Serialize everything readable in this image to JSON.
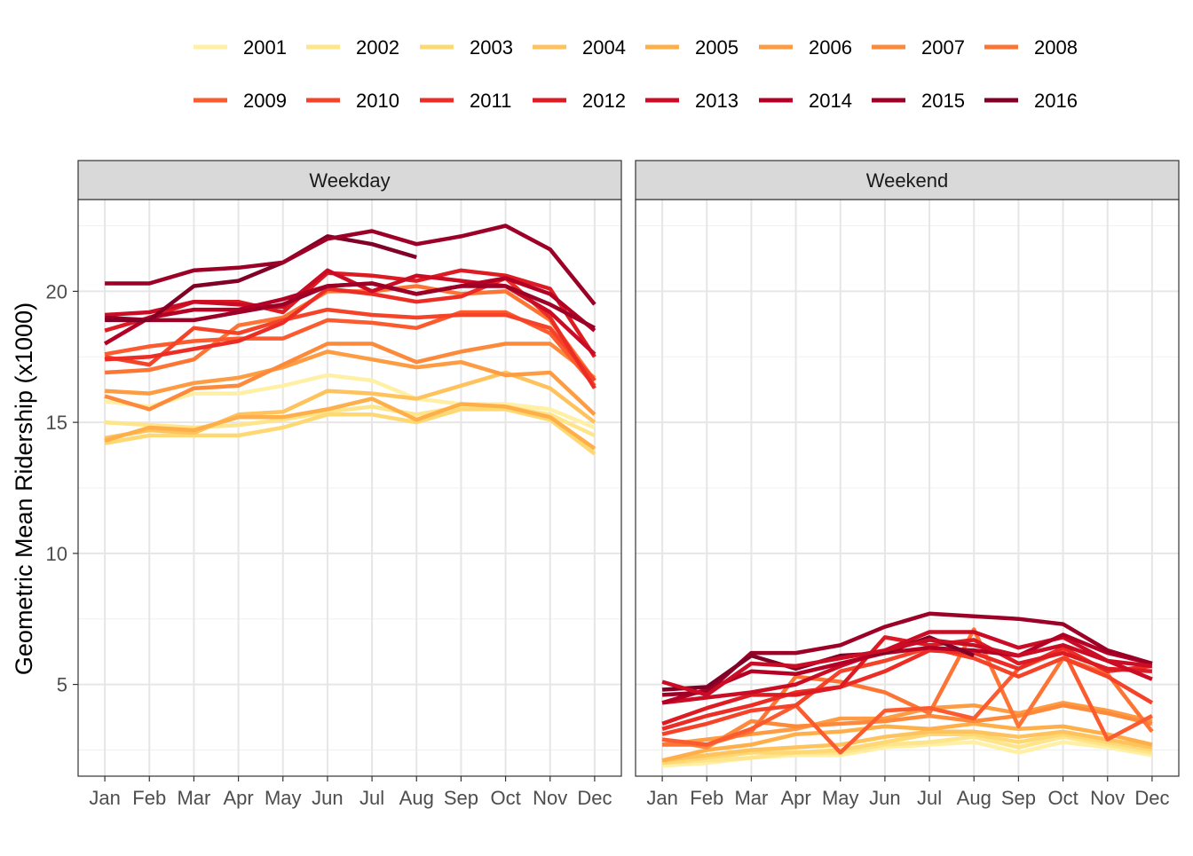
{
  "chart_data": {
    "type": "line",
    "ylabel": "Geometric Mean Ridership (x1000)",
    "xlabel": "",
    "categories": [
      "Jan",
      "Feb",
      "Mar",
      "Apr",
      "May",
      "Jun",
      "Jul",
      "Aug",
      "Sep",
      "Oct",
      "Nov",
      "Dec"
    ],
    "yticks": [
      5,
      10,
      15,
      20
    ],
    "legend_position": "top",
    "facet_labels": [
      "Weekday",
      "Weekend"
    ],
    "panels": [
      {
        "facet": "Weekday",
        "ylim": [
          1.5,
          23.5
        ],
        "series": [
          {
            "name": "2001",
            "color": "#FFF0A6",
            "values": [
              15.8,
              15.6,
              16.1,
              16.1,
              16.4,
              16.8,
              16.6,
              15.9,
              15.7,
              15.7,
              15.5,
              14.8
            ]
          },
          {
            "name": "2002",
            "color": "#FEE48A",
            "values": [
              15.0,
              14.9,
              14.8,
              14.9,
              15.1,
              15.4,
              15.6,
              15.3,
              15.6,
              15.6,
              15.3,
              14.5
            ]
          },
          {
            "name": "2003",
            "color": "#FED873",
            "values": [
              14.2,
              14.5,
              14.5,
              14.5,
              14.8,
              15.3,
              15.3,
              15.0,
              15.5,
              15.5,
              15.1,
              13.8
            ]
          },
          {
            "name": "2004",
            "color": "#FEC35D",
            "values": [
              14.4,
              14.7,
              14.6,
              15.3,
              15.4,
              16.2,
              16.1,
              15.9,
              16.4,
              16.9,
              16.3,
              15.0
            ]
          },
          {
            "name": "2005",
            "color": "#FEAF4A",
            "values": [
              14.3,
              14.8,
              14.7,
              15.2,
              15.2,
              15.5,
              15.9,
              15.1,
              15.7,
              15.6,
              15.2,
              14.0
            ]
          },
          {
            "name": "2006",
            "color": "#FD9C42",
            "values": [
              16.2,
              16.1,
              16.5,
              16.7,
              17.1,
              17.7,
              17.4,
              17.1,
              17.3,
              16.8,
              16.9,
              15.3
            ]
          },
          {
            "name": "2007",
            "color": "#FD893B",
            "values": [
              16.0,
              15.5,
              16.3,
              16.4,
              17.2,
              18.0,
              18.0,
              17.3,
              17.7,
              18.0,
              18.0,
              16.7
            ]
          },
          {
            "name": "2008",
            "color": "#FC7534",
            "values": [
              16.9,
              17.0,
              17.4,
              18.7,
              19.0,
              20.0,
              20.0,
              20.2,
              19.9,
              20.0,
              18.9,
              16.6
            ]
          },
          {
            "name": "2009",
            "color": "#FB5B2E",
            "values": [
              17.6,
              17.9,
              18.1,
              18.2,
              18.2,
              18.9,
              18.8,
              18.6,
              19.2,
              19.2,
              18.4,
              16.4
            ]
          },
          {
            "name": "2010",
            "color": "#F44329",
            "values": [
              17.5,
              17.2,
              18.6,
              18.4,
              18.9,
              19.3,
              19.1,
              19.0,
              19.1,
              19.1,
              18.6,
              16.6
            ]
          },
          {
            "name": "2011",
            "color": "#EB2D25",
            "values": [
              17.4,
              17.5,
              17.8,
              18.1,
              18.8,
              20.1,
              19.9,
              19.6,
              19.8,
              20.5,
              19.0,
              16.3
            ]
          },
          {
            "name": "2012",
            "color": "#DD1B23",
            "values": [
              18.5,
              19.0,
              19.6,
              19.6,
              19.2,
              20.7,
              20.6,
              20.4,
              20.8,
              20.6,
              20.1,
              17.5
            ]
          },
          {
            "name": "2013",
            "color": "#CB0C25",
            "values": [
              19.1,
              19.2,
              19.6,
              19.5,
              19.4,
              20.8,
              20.0,
              20.6,
              20.4,
              20.2,
              19.2,
              17.6
            ]
          },
          {
            "name": "2014",
            "color": "#B50026",
            "values": [
              18.0,
              19.0,
              19.3,
              19.3,
              19.7,
              20.2,
              20.3,
              19.9,
              20.2,
              20.5,
              19.9,
              18.5
            ]
          },
          {
            "name": "2015",
            "color": "#9D0026",
            "values": [
              19.0,
              18.9,
              18.9,
              19.2,
              19.5,
              20.2,
              20.3,
              19.9,
              20.2,
              20.2,
              19.5,
              18.6
            ]
          },
          {
            "name": "2016",
            "color": "#800026",
            "values": [
              18.9,
              18.9,
              20.2,
              20.4,
              21.1,
              22.1,
              21.8,
              21.3,
              null,
              null,
              null,
              null
            ]
          },
          {
            "name": "2015b",
            "color": "#9D0026",
            "legend": false,
            "values": [
              20.3,
              20.3,
              20.8,
              20.9,
              21.1,
              22.0,
              22.3,
              21.8,
              22.1,
              22.5,
              21.6,
              19.5
            ]
          }
        ]
      },
      {
        "facet": "Weekend",
        "ylim": [
          1.5,
          23.5
        ],
        "series": [
          {
            "name": "2001",
            "color": "#FFF0A6",
            "values": [
              1.9,
              2.0,
              2.2,
              2.3,
              2.3,
              2.6,
              2.7,
              2.8,
              2.4,
              2.8,
              2.6,
              2.3
            ]
          },
          {
            "name": "2002",
            "color": "#FEE48A",
            "values": [
              2.0,
              2.1,
              2.2,
              2.4,
              2.4,
              2.7,
              2.8,
              3.0,
              2.6,
              3.0,
              2.7,
              2.4
            ]
          },
          {
            "name": "2003",
            "color": "#FED873",
            "values": [
              2.0,
              2.2,
              2.4,
              2.4,
              2.5,
              2.8,
              3.1,
              3.1,
              2.8,
              3.1,
              2.8,
              2.5
            ]
          },
          {
            "name": "2004",
            "color": "#FEC35D",
            "values": [
              2.1,
              2.3,
              2.5,
              2.6,
              2.7,
              3.0,
              3.2,
              3.2,
              3.0,
              3.2,
              2.9,
              2.6
            ]
          },
          {
            "name": "2005",
            "color": "#FEAF4A",
            "values": [
              2.1,
              2.5,
              2.7,
              3.1,
              3.2,
              3.4,
              3.3,
              3.5,
              3.3,
              3.4,
              3.1,
              2.7
            ]
          },
          {
            "name": "2006",
            "color": "#FD9C42",
            "values": [
              2.7,
              2.9,
              3.1,
              3.3,
              3.7,
              3.7,
              4.1,
              4.2,
              3.9,
              4.3,
              4.0,
              3.6
            ]
          },
          {
            "name": "2007",
            "color": "#FD893B",
            "values": [
              2.9,
              2.6,
              3.6,
              3.4,
              3.5,
              3.6,
              3.8,
              3.6,
              3.8,
              4.2,
              3.9,
              3.5
            ]
          },
          {
            "name": "2008",
            "color": "#FC7534",
            "values": [
              2.7,
              2.7,
              3.2,
              5.3,
              5.1,
              4.7,
              3.9,
              7.1,
              3.4,
              6.0,
              5.4,
              3.2
            ]
          },
          {
            "name": "2009",
            "color": "#FB5B2E",
            "values": [
              2.9,
              2.7,
              3.3,
              4.2,
              2.4,
              4.0,
              4.1,
              3.7,
              5.6,
              6.3,
              2.9,
              3.8
            ]
          },
          {
            "name": "2010",
            "color": "#F44329",
            "values": [
              3.1,
              3.5,
              4.0,
              4.2,
              5.5,
              5.9,
              6.4,
              6.0,
              5.3,
              6.0,
              5.3,
              4.3
            ]
          },
          {
            "name": "2011",
            "color": "#EB2D25",
            "values": [
              3.3,
              3.8,
              4.2,
              4.7,
              4.9,
              5.5,
              6.3,
              6.2,
              5.6,
              6.4,
              5.5,
              5.7
            ]
          },
          {
            "name": "2012",
            "color": "#DD1B23",
            "values": [
              3.5,
              4.1,
              4.6,
              4.6,
              4.9,
              6.8,
              6.5,
              6.7,
              5.8,
              6.2,
              5.6,
              5.5
            ]
          },
          {
            "name": "2013",
            "color": "#CB0C25",
            "values": [
              4.3,
              4.5,
              4.7,
              5.0,
              5.7,
              6.3,
              7.0,
              7.0,
              6.4,
              6.8,
              5.9,
              5.2
            ]
          },
          {
            "name": "2014",
            "color": "#B50026",
            "values": [
              4.3,
              4.8,
              5.5,
              5.4,
              5.8,
              6.2,
              6.4,
              6.3,
              6.1,
              6.9,
              6.2,
              5.8
            ]
          },
          {
            "name": "2015",
            "color": "#9D0026",
            "values": [
              4.6,
              4.7,
              6.2,
              6.2,
              6.5,
              7.2,
              7.7,
              7.6,
              7.5,
              7.3,
              6.3,
              5.8
            ]
          },
          {
            "name": "2016",
            "color": "#800026",
            "values": [
              4.8,
              4.9,
              6.1,
              5.6,
              6.1,
              6.2,
              6.8,
              6.1,
              null,
              null,
              null,
              null
            ]
          },
          {
            "name": "2013b",
            "color": "#CB0C25",
            "legend": false,
            "values": [
              5.1,
              4.6,
              5.8,
              5.7,
              6.0,
              6.3,
              6.7,
              6.5,
              6.1,
              6.5,
              5.9,
              5.7
            ]
          }
        ]
      }
    ],
    "legend": [
      {
        "label": "2001",
        "color": "#FFF0A6"
      },
      {
        "label": "2002",
        "color": "#FEE48A"
      },
      {
        "label": "2003",
        "color": "#FED873"
      },
      {
        "label": "2004",
        "color": "#FEC35D"
      },
      {
        "label": "2005",
        "color": "#FEAF4A"
      },
      {
        "label": "2006",
        "color": "#FD9C42"
      },
      {
        "label": "2007",
        "color": "#FD893B"
      },
      {
        "label": "2008",
        "color": "#FC7534"
      },
      {
        "label": "2009",
        "color": "#FB5B2E"
      },
      {
        "label": "2010",
        "color": "#F44329"
      },
      {
        "label": "2011",
        "color": "#EB2D25"
      },
      {
        "label": "2012",
        "color": "#DD1B23"
      },
      {
        "label": "2013",
        "color": "#CB0C25"
      },
      {
        "label": "2014",
        "color": "#B50026"
      },
      {
        "label": "2015",
        "color": "#9D0026"
      },
      {
        "label": "2016",
        "color": "#800026"
      }
    ]
  }
}
